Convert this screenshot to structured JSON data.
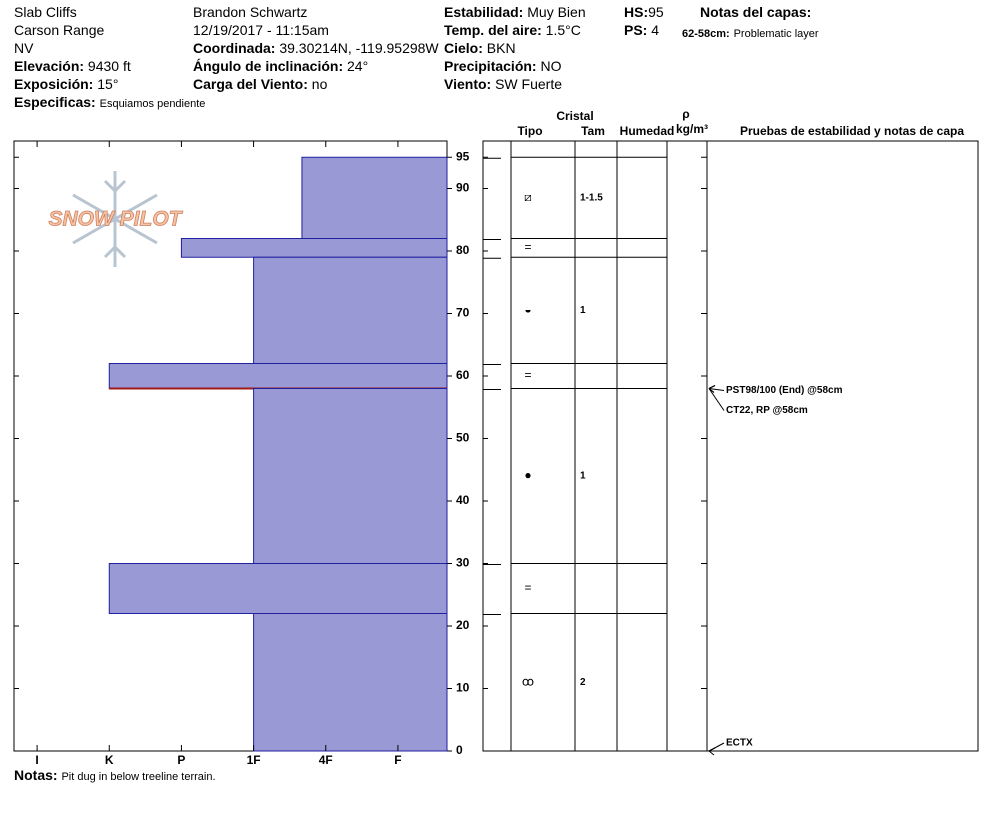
{
  "header": {
    "site": "Slab Cliffs",
    "range": "Carson Range",
    "state": "NV",
    "elevation": {
      "label": "Elevación:",
      "value": "9430 ft"
    },
    "aspect": {
      "label": "Exposición:",
      "value": "15°"
    },
    "specifics": {
      "label": "Especificas:",
      "value": "Esquiamos pendiente"
    },
    "observer": "Brandon Schwartz",
    "datetime": "12/19/2017 - 11:15am",
    "coords": {
      "label": "Coordinada:",
      "value": "39.30214N, -119.95298W"
    },
    "slope": {
      "label": "Ángulo de inclinación:",
      "value": "24°"
    },
    "wind_load": {
      "label": "Carga del Viento:",
      "value": "no"
    },
    "stability": {
      "label": "Estabilidad:",
      "value": "Muy Bien"
    },
    "air_temp": {
      "label": "Temp. del aire:",
      "value": "1.5°C"
    },
    "sky": {
      "label": "Cielo:",
      "value": "BKN"
    },
    "precip": {
      "label": "Precipitación:",
      "value": "NO"
    },
    "wind": {
      "label": "Viento:",
      "value": "SW Fuerte"
    },
    "hs": {
      "label": "HS:",
      "value": "95"
    },
    "ps": {
      "label": "PS:",
      "value": "4"
    },
    "layer_notes_title": "Notas del capas:",
    "layer_note": {
      "label": "62-58cm:",
      "value": "Problematic layer"
    }
  },
  "table_headers": {
    "crystal": "Cristal",
    "type": "Tipo",
    "size": "Tam",
    "moisture": "Humedad",
    "rho": "ρ",
    "density_unit": "kg/m³",
    "tests": "Pruebas de estabilidad y notas de capa"
  },
  "logo": "SNOW PILOT",
  "notes": {
    "label": "Notas:",
    "value": "Pit dug in below treeline terrain."
  },
  "chart_data": {
    "type": "profile",
    "color": "#9999d6",
    "highlight_color": "#a01818",
    "ylim": [
      0,
      97.6
    ],
    "yticks": [
      0,
      10,
      20,
      30,
      40,
      50,
      60,
      70,
      80,
      90,
      95
    ],
    "xlim": [
      6.32,
      0.32
    ],
    "xticks": [
      {
        "value": 6,
        "label": "I"
      },
      {
        "value": 5,
        "label": "K"
      },
      {
        "value": 4,
        "label": "P"
      },
      {
        "value": 3,
        "label": "1F"
      },
      {
        "value": 2,
        "label": "4F"
      },
      {
        "value": 1,
        "label": "F"
      }
    ],
    "layers": [
      {
        "top": 95,
        "bottom": 82,
        "hardness": 2.33,
        "grain": "⧄",
        "size": "1-1.5"
      },
      {
        "top": 82,
        "bottom": 79,
        "hardness": 4,
        "grain": "="
      },
      {
        "top": 79,
        "bottom": 62,
        "hardness": 3,
        "grain": "◒",
        "size": "1"
      },
      {
        "top": 62,
        "bottom": 58,
        "hardness": 5,
        "grain": "=",
        "highlight": true
      },
      {
        "top": 58,
        "bottom": 30,
        "hardness": 3,
        "grain": "●",
        "size": "1"
      },
      {
        "top": 30,
        "bottom": 22,
        "hardness": 5,
        "grain": "="
      },
      {
        "top": 22,
        "bottom": 0,
        "hardness": 3,
        "grain": "ꝏ",
        "size": "2"
      }
    ],
    "tests": [
      {
        "depth": 58,
        "label": "PST98/100 (End) @58cm"
      },
      {
        "depth": 58,
        "label": "CT22, RP @58cm"
      },
      {
        "depth": 0,
        "label": "ECTX"
      }
    ]
  }
}
